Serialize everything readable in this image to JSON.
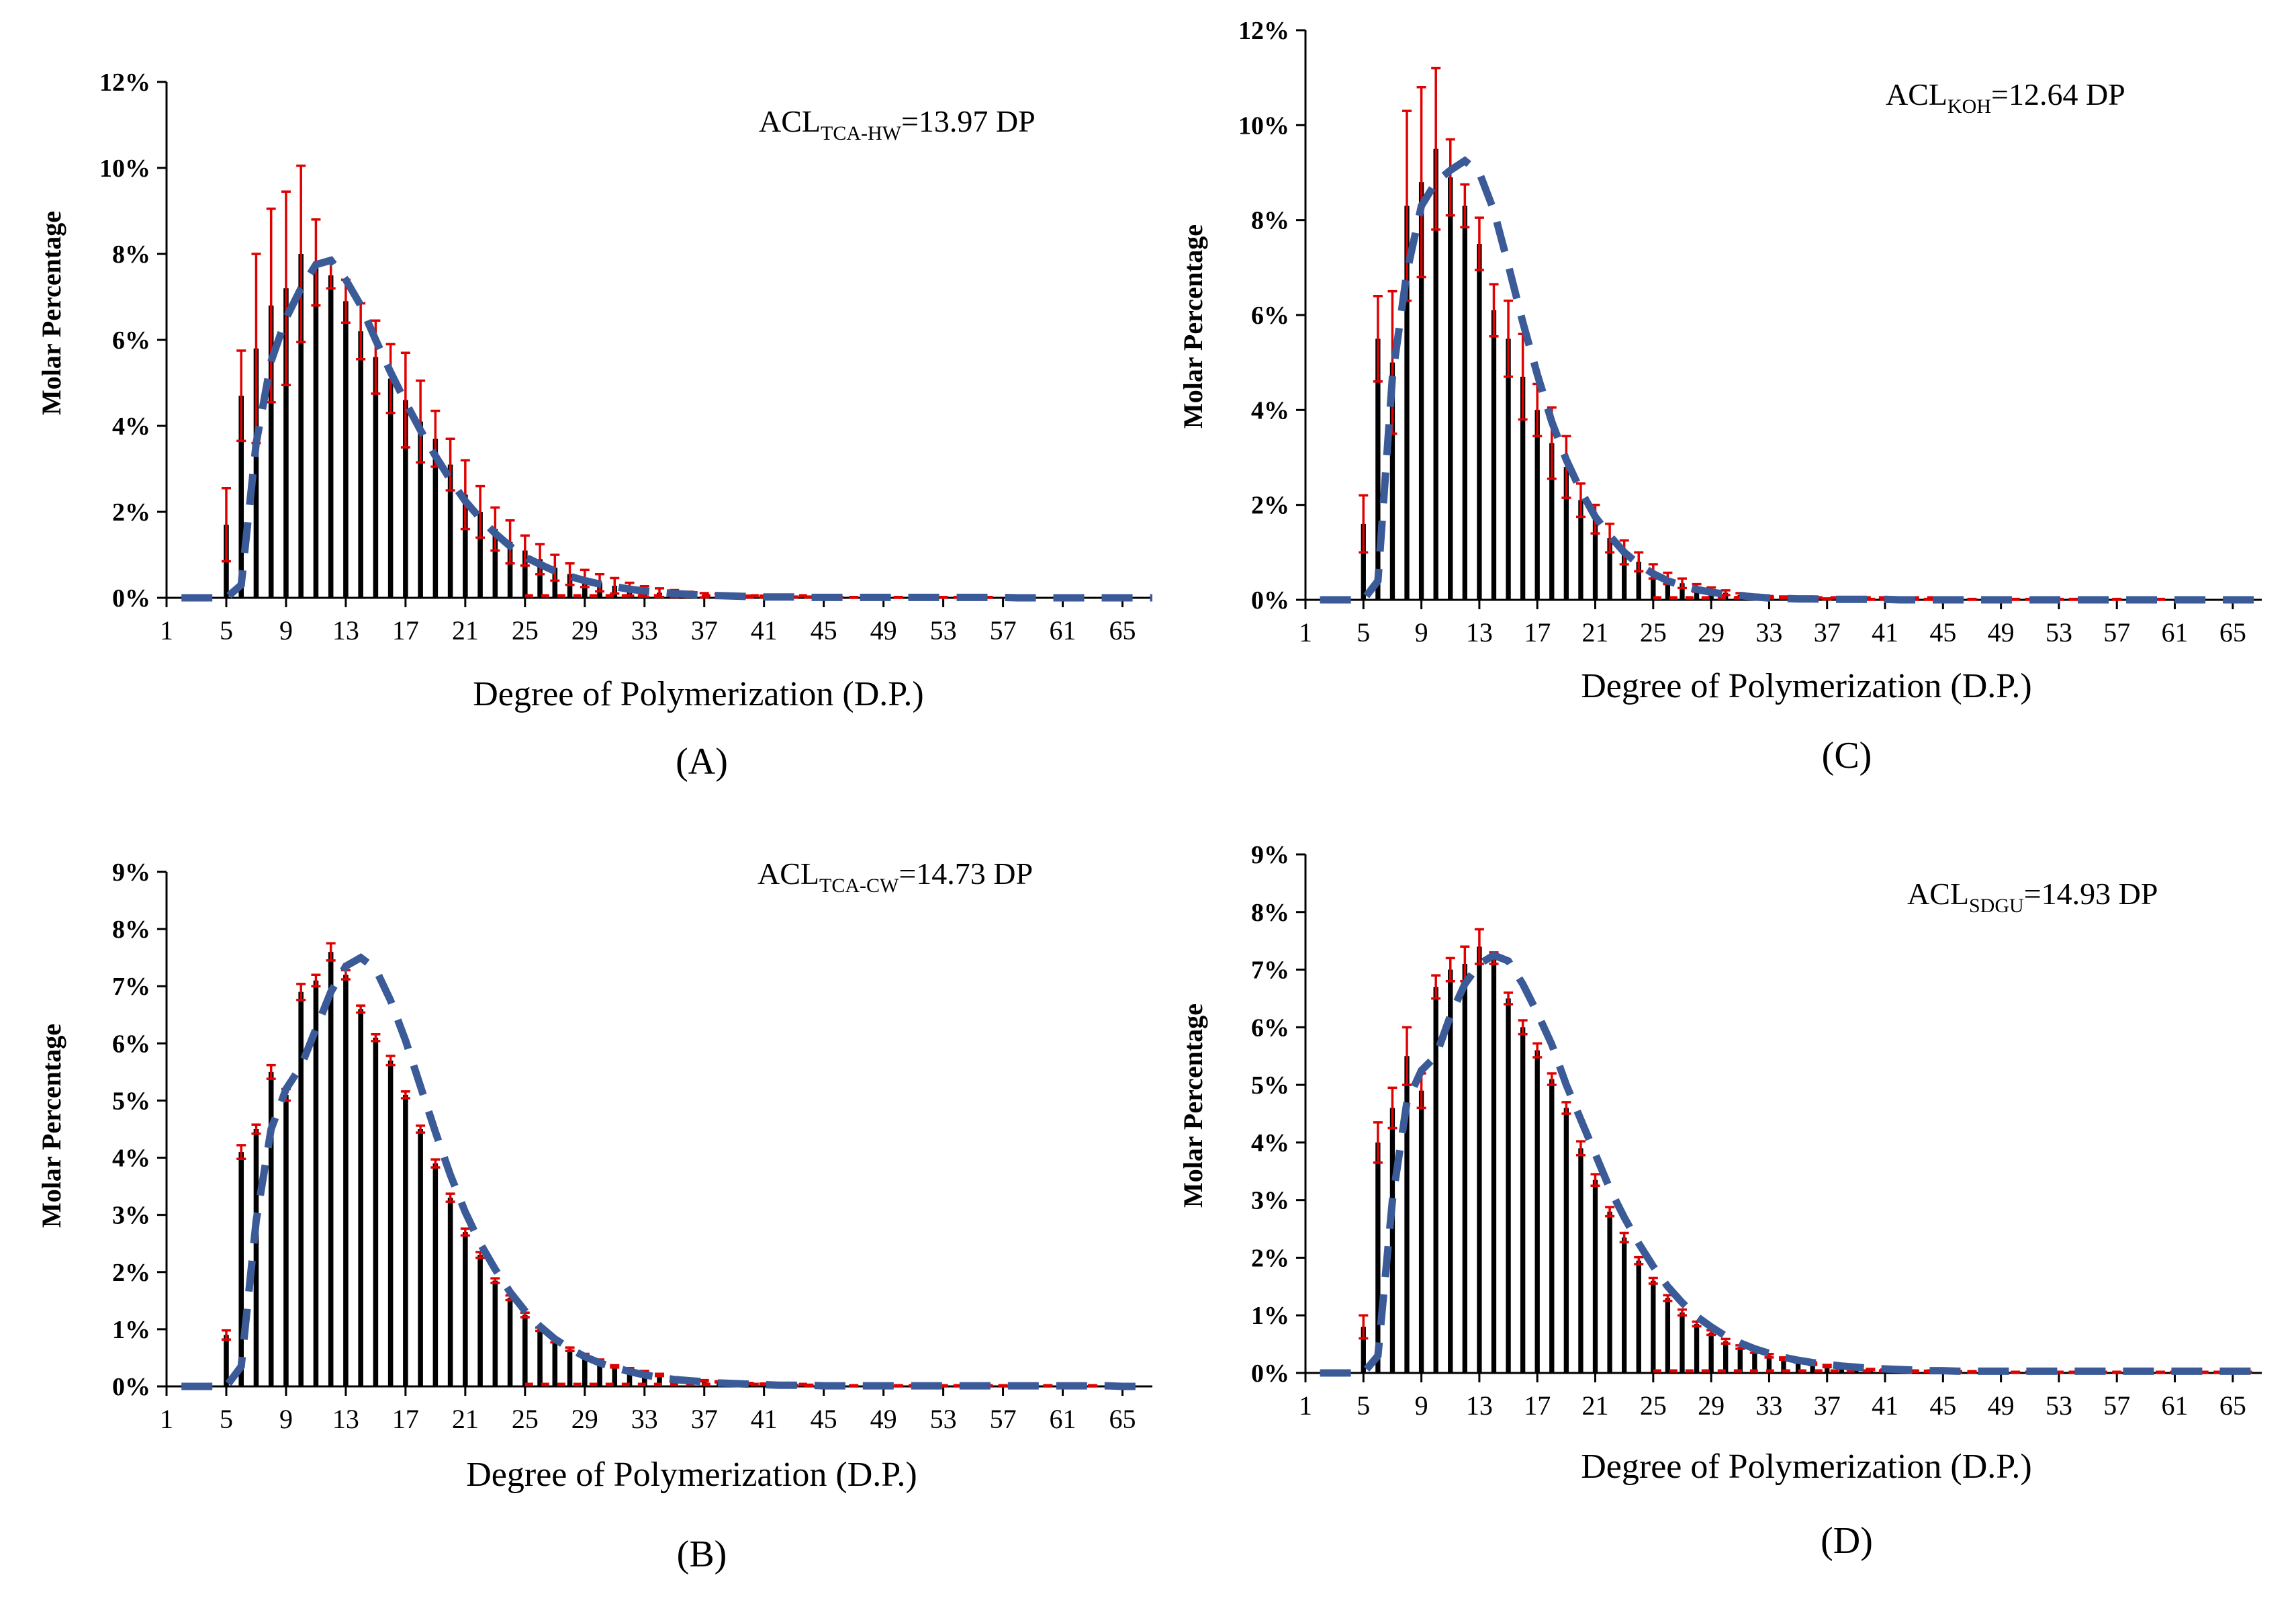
{
  "figure": {
    "description_title": ""
  },
  "colors": {
    "bars": "#000000",
    "error_bars": "#e00000",
    "fit_line": "#3a5a98"
  },
  "chart_data": [
    {
      "id": "A",
      "type": "bar",
      "panel_label": "(A)",
      "acl": {
        "prefix": "ACL",
        "subscript": "TCA-HW",
        "suffix": "=13.97  DP"
      },
      "xlabel": "Degree of Polymerization  (D.P.)",
      "ylabel": "Molar Percentage",
      "x_start": 1,
      "x_end": 67,
      "xticks": [
        "1",
        "5",
        "9",
        "13",
        "17",
        "21",
        "25",
        "29",
        "33",
        "37",
        "41",
        "45",
        "49",
        "53",
        "57",
        "61",
        "65"
      ],
      "ylim": [
        0,
        12
      ],
      "yticks": [
        "0%",
        "2%",
        "4%",
        "6%",
        "8%",
        "10%",
        "12%"
      ],
      "ytick_values": [
        0,
        2,
        4,
        6,
        8,
        10,
        12
      ],
      "values": [
        0,
        0,
        0,
        0,
        1.7,
        4.7,
        5.8,
        6.8,
        7.2,
        8.0,
        7.8,
        7.5,
        6.9,
        6.2,
        5.6,
        5.1,
        4.6,
        4.1,
        3.7,
        3.1,
        2.4,
        2.0,
        1.6,
        1.3,
        1.1,
        0.9,
        0.7,
        0.55,
        0.45,
        0.35,
        0.28,
        0.2,
        0.15,
        0.12,
        0.1,
        0.08,
        0.06,
        0.05,
        0.04,
        0.03,
        0.03,
        0.02,
        0.02,
        0.02,
        0.01,
        0.01,
        0.01,
        0.01,
        0.01,
        0.01,
        0.01,
        0.01,
        0.01,
        0.01,
        0.01,
        0.01,
        0,
        0,
        0,
        0,
        0,
        0,
        0,
        0,
        0,
        0
      ],
      "errors": [
        0,
        0,
        0,
        0,
        0.85,
        1.05,
        2.2,
        2.25,
        2.25,
        2.05,
        1.0,
        0.3,
        0.5,
        0.65,
        0.85,
        0.8,
        1.1,
        0.95,
        0.65,
        0.6,
        0.8,
        0.6,
        0.5,
        0.5,
        0.35,
        0.35,
        0.3,
        0.25,
        0.2,
        0.2,
        0.18,
        0.15,
        0.12,
        0.1,
        0.08,
        0.06,
        0.05,
        0.04,
        0.03,
        0.02,
        0.02,
        0.02,
        0.01,
        0.01,
        0.01,
        0.01,
        0.01,
        0.01,
        0.01,
        0.01,
        0.01,
        0.01,
        0.01,
        0.01,
        0.01,
        0.01,
        0,
        0,
        0,
        0,
        0,
        0,
        0,
        0,
        0,
        0
      ],
      "fit": [
        0,
        0,
        0,
        0,
        0.3,
        3.6,
        5.5,
        6.5,
        7.2,
        7.75,
        7.85,
        7.4,
        6.8,
        6.0,
        5.25,
        4.55,
        3.9,
        3.3,
        2.75,
        2.25,
        1.85,
        1.5,
        1.2,
        0.95,
        0.78,
        0.62,
        0.5,
        0.4,
        0.32,
        0.26,
        0.2,
        0.16,
        0.13,
        0.1,
        0.08,
        0.06,
        0.05,
        0.04,
        0.03,
        0.02,
        0.02,
        0.02,
        0.01,
        0.01,
        0.01,
        0.01,
        0.01,
        0.01,
        0.01,
        0.01,
        0.01,
        0.01,
        0.01,
        0.01,
        0.01,
        0.01,
        0,
        0,
        0,
        0,
        0,
        0,
        0,
        0,
        0,
        0
      ]
    },
    {
      "id": "C",
      "type": "bar",
      "panel_label": "(C)",
      "acl": {
        "prefix": "ACL",
        "subscript": "KOH",
        "suffix": "=12.64  DP"
      },
      "xlabel": "Degree of Polymerization  (D.P.)",
      "ylabel": "Molar Percentage",
      "x_start": 1,
      "x_end": 67,
      "xticks": [
        "1",
        "5",
        "9",
        "13",
        "17",
        "21",
        "25",
        "29",
        "33",
        "37",
        "41",
        "45",
        "49",
        "53",
        "57",
        "61",
        "65"
      ],
      "ylim": [
        0,
        12
      ],
      "yticks": [
        "0%",
        "2%",
        "4%",
        "6%",
        "8%",
        "10%",
        "12%"
      ],
      "ytick_values": [
        0,
        2,
        4,
        6,
        8,
        10,
        12
      ],
      "values": [
        0,
        0,
        0,
        0,
        1.6,
        5.5,
        5.0,
        8.3,
        8.8,
        9.5,
        8.9,
        8.3,
        7.5,
        6.1,
        5.5,
        4.7,
        4.0,
        3.3,
        2.8,
        2.1,
        1.7,
        1.3,
        1.0,
        0.8,
        0.6,
        0.45,
        0.35,
        0.25,
        0.2,
        0.15,
        0.1,
        0.08,
        0.06,
        0.05,
        0.04,
        0.03,
        0.02,
        0.02,
        0.01,
        0.01,
        0.01,
        0.01,
        0.01,
        0.01,
        0.01,
        0.01,
        0.01,
        0.01,
        0.01,
        0.01,
        0.01,
        0.01,
        0.01,
        0.01,
        0.01,
        0.01,
        0.01,
        0.01,
        0.01,
        0.01,
        0,
        0,
        0,
        0,
        0,
        0
      ],
      "errors": [
        0,
        0,
        0,
        0,
        0.6,
        0.9,
        1.5,
        2.0,
        2.0,
        1.7,
        0.8,
        0.45,
        0.55,
        0.55,
        0.8,
        0.9,
        0.55,
        0.75,
        0.65,
        0.35,
        0.3,
        0.3,
        0.25,
        0.2,
        0.15,
        0.12,
        0.1,
        0.08,
        0.06,
        0.05,
        0.04,
        0.03,
        0.02,
        0.02,
        0.01,
        0.01,
        0.01,
        0.01,
        0.01,
        0.01,
        0.01,
        0.01,
        0.01,
        0.01,
        0.01,
        0.01,
        0.01,
        0.01,
        0.01,
        0.01,
        0.01,
        0.01,
        0.01,
        0.01,
        0.01,
        0.01,
        0.01,
        0.01,
        0.01,
        0.01,
        0,
        0,
        0,
        0,
        0,
        0
      ],
      "fit": [
        0,
        0,
        0,
        0,
        0.4,
        4.7,
        6.9,
        8.3,
        8.8,
        9.05,
        9.25,
        9.0,
        8.2,
        7.05,
        5.85,
        4.75,
        3.75,
        2.95,
        2.3,
        1.75,
        1.35,
        1.0,
        0.75,
        0.55,
        0.4,
        0.3,
        0.22,
        0.16,
        0.12,
        0.09,
        0.06,
        0.04,
        0.03,
        0.02,
        0.02,
        0.01,
        0.01,
        0.01,
        0.01,
        0.01,
        0,
        0,
        0,
        0,
        0,
        0,
        0,
        0,
        0,
        0,
        0,
        0,
        0,
        0,
        0,
        0,
        0,
        0,
        0,
        0,
        0,
        0,
        0,
        0,
        0,
        0
      ]
    },
    {
      "id": "B",
      "type": "bar",
      "panel_label": "(B)",
      "acl": {
        "prefix": "ACL",
        "subscript": "TCA-CW",
        "suffix": "=14.73  DP"
      },
      "xlabel": "Degree of Polymerization  (D.P.)",
      "ylabel": "Molar Percentage",
      "x_start": 1,
      "x_end": 67,
      "xticks": [
        "1",
        "5",
        "9",
        "13",
        "17",
        "21",
        "25",
        "29",
        "33",
        "37",
        "41",
        "45",
        "49",
        "53",
        "57",
        "61",
        "65"
      ],
      "ylim": [
        0,
        9
      ],
      "yticks": [
        "0%",
        "1%",
        "2%",
        "3%",
        "4%",
        "5%",
        "6%",
        "7%",
        "8%",
        "9%"
      ],
      "ytick_values": [
        0,
        1,
        2,
        3,
        4,
        5,
        6,
        7,
        8,
        9
      ],
      "values": [
        0,
        0,
        0,
        0,
        0.9,
        4.1,
        4.5,
        5.5,
        5.1,
        6.9,
        7.1,
        7.6,
        7.2,
        6.6,
        6.1,
        5.7,
        5.1,
        4.5,
        3.9,
        3.3,
        2.7,
        2.3,
        1.85,
        1.55,
        1.25,
        1.0,
        0.8,
        0.65,
        0.55,
        0.45,
        0.35,
        0.3,
        0.25,
        0.2,
        0.15,
        0.12,
        0.1,
        0.08,
        0.06,
        0.05,
        0.04,
        0.03,
        0.02,
        0.02,
        0.02,
        0.01,
        0.01,
        0.01,
        0.01,
        0.01,
        0.01,
        0.01,
        0.01,
        0.01,
        0.01,
        0.01,
        0.01,
        0.01,
        0.01,
        0.01,
        0.01,
        0.01,
        0.01,
        0,
        0,
        0
      ],
      "errors": [
        0,
        0,
        0,
        0,
        0.08,
        0.12,
        0.08,
        0.12,
        0.1,
        0.14,
        0.1,
        0.15,
        0.08,
        0.06,
        0.06,
        0.08,
        0.06,
        0.06,
        0.07,
        0.07,
        0.06,
        0.05,
        0.04,
        0.04,
        0.04,
        0.03,
        0.03,
        0.03,
        0.02,
        0.02,
        0.02,
        0.02,
        0.02,
        0.02,
        0.01,
        0.01,
        0.01,
        0.01,
        0.01,
        0.01,
        0.01,
        0.01,
        0.01,
        0.01,
        0.01,
        0.01,
        0.01,
        0.01,
        0.01,
        0.01,
        0.01,
        0.01,
        0.01,
        0.01,
        0.01,
        0.01,
        0.01,
        0.01,
        0.01,
        0.01,
        0.01,
        0.01,
        0.01,
        0,
        0,
        0
      ],
      "fit": [
        0,
        0,
        0,
        0,
        0.35,
        2.9,
        4.5,
        5.2,
        5.6,
        6.25,
        6.9,
        7.35,
        7.5,
        7.3,
        6.75,
        6.05,
        5.25,
        4.45,
        3.7,
        3.05,
        2.5,
        2.05,
        1.65,
        1.32,
        1.05,
        0.83,
        0.66,
        0.52,
        0.41,
        0.33,
        0.26,
        0.2,
        0.16,
        0.12,
        0.1,
        0.08,
        0.06,
        0.05,
        0.04,
        0.03,
        0.02,
        0.02,
        0.02,
        0.01,
        0.01,
        0.01,
        0.01,
        0.01,
        0.01,
        0.01,
        0.01,
        0.01,
        0.01,
        0.01,
        0.01,
        0.01,
        0.01,
        0.01,
        0.01,
        0.01,
        0.01,
        0.01,
        0.01,
        0,
        0,
        0
      ]
    },
    {
      "id": "D",
      "type": "bar",
      "panel_label": "(D)",
      "acl": {
        "prefix": "ACL",
        "subscript": "SDGU",
        "suffix": "=14.93  DP"
      },
      "xlabel": "Degree of Polymerization  (D.P.)",
      "ylabel": "Molar Percentage",
      "x_start": 1,
      "x_end": 67,
      "xticks": [
        "1",
        "5",
        "9",
        "13",
        "17",
        "21",
        "25",
        "29",
        "33",
        "37",
        "41",
        "45",
        "49",
        "53",
        "57",
        "61",
        "65"
      ],
      "ylim": [
        0,
        9
      ],
      "yticks": [
        "0%",
        "1%",
        "2%",
        "3%",
        "4%",
        "5%",
        "6%",
        "7%",
        "8%",
        "9%"
      ],
      "ytick_values": [
        0,
        1,
        2,
        3,
        4,
        5,
        6,
        7,
        8,
        9
      ],
      "values": [
        0,
        0,
        0,
        0,
        0.8,
        4.0,
        4.6,
        5.5,
        4.9,
        6.7,
        7.0,
        7.1,
        7.4,
        7.2,
        6.5,
        6.0,
        5.6,
        5.1,
        4.6,
        3.9,
        3.35,
        2.8,
        2.35,
        1.95,
        1.6,
        1.3,
        1.05,
        0.85,
        0.7,
        0.55,
        0.45,
        0.38,
        0.3,
        0.25,
        0.2,
        0.16,
        0.12,
        0.1,
        0.08,
        0.06,
        0.05,
        0.04,
        0.03,
        0.03,
        0.02,
        0.02,
        0.02,
        0.01,
        0.01,
        0.01,
        0.01,
        0.01,
        0.01,
        0.01,
        0.01,
        0.01,
        0.01,
        0.01,
        0.01,
        0.01,
        0.01,
        0.01,
        0.01,
        0.01,
        0.01,
        0.01
      ],
      "errors": [
        0,
        0,
        0,
        0,
        0.2,
        0.35,
        0.35,
        0.5,
        0.3,
        0.2,
        0.2,
        0.3,
        0.3,
        0.1,
        0.1,
        0.12,
        0.12,
        0.1,
        0.1,
        0.12,
        0.1,
        0.08,
        0.08,
        0.06,
        0.05,
        0.05,
        0.05,
        0.04,
        0.04,
        0.04,
        0.03,
        0.03,
        0.03,
        0.02,
        0.02,
        0.02,
        0.02,
        0.02,
        0.01,
        0.01,
        0.01,
        0.01,
        0.01,
        0.01,
        0.01,
        0.01,
        0.01,
        0.01,
        0.01,
        0.01,
        0.01,
        0.01,
        0.01,
        0.01,
        0.01,
        0.01,
        0.01,
        0.01,
        0.01,
        0.01,
        0.01,
        0.01,
        0.01,
        0.01,
        0.01,
        0.01
      ],
      "fit": [
        0,
        0,
        0,
        0,
        0.3,
        3.0,
        4.7,
        5.25,
        5.5,
        6.2,
        6.75,
        7.1,
        7.25,
        7.15,
        6.75,
        6.25,
        5.7,
        5.0,
        4.4,
        3.8,
        3.2,
        2.7,
        2.25,
        1.85,
        1.5,
        1.22,
        0.98,
        0.8,
        0.64,
        0.52,
        0.42,
        0.34,
        0.27,
        0.22,
        0.18,
        0.15,
        0.12,
        0.1,
        0.08,
        0.07,
        0.06,
        0.05,
        0.04,
        0.04,
        0.03,
        0.03,
        0.03,
        0.03,
        0.03,
        0.03,
        0.03,
        0.03,
        0.03,
        0.03,
        0.03,
        0.03,
        0.03,
        0.03,
        0.03,
        0.03,
        0.03,
        0.03,
        0.03,
        0.03,
        0.03,
        0.03
      ]
    }
  ]
}
